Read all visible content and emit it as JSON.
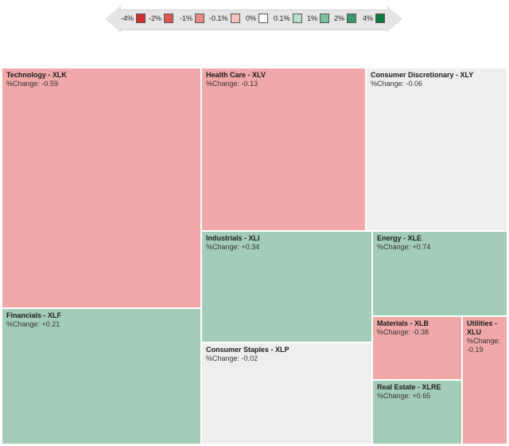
{
  "legend": [
    {
      "label": "-4%",
      "color": "#d0302c"
    },
    {
      "label": "-2%",
      "color": "#df5957"
    },
    {
      "label": "-1%",
      "color": "#e98a89"
    },
    {
      "label": "-0.1%",
      "color": "#f5c1c0"
    },
    {
      "label": "0%",
      "color": "#ffffff"
    },
    {
      "label": "0.1%",
      "color": "#b9ddc9"
    },
    {
      "label": "1%",
      "color": "#7fc0a0"
    },
    {
      "label": "2%",
      "color": "#3b9a6b"
    },
    {
      "label": "4%",
      "color": "#0d7a43"
    }
  ],
  "chart_data": {
    "type": "treemap",
    "change_label": "%Change:",
    "items": [
      {
        "name": "Technology - XLK",
        "change": "-0.59",
        "color": "#f0a8a8"
      },
      {
        "name": "Health Care - XLV",
        "change": "-0.13",
        "color": "#f0a8a8"
      },
      {
        "name": "Consumer Discretionary - XLY",
        "change": "-0.06",
        "color": "#eeeeee"
      },
      {
        "name": "Financials - XLF",
        "change": "+0.21",
        "color": "#a4cdb9"
      },
      {
        "name": "Industrials - XLI",
        "change": "+0.34",
        "color": "#a4cdb9"
      },
      {
        "name": "Energy - XLE",
        "change": "+0.74",
        "color": "#a4cdb9"
      },
      {
        "name": "Consumer Staples - XLP",
        "change": "-0.02",
        "color": "#eeeeee"
      },
      {
        "name": "Materials - XLB",
        "change": "-0.38",
        "color": "#f0a8a8"
      },
      {
        "name": "Utilities - XLU",
        "change": "-0.19",
        "color": "#f0a8a8"
      },
      {
        "name": "Real Estate - XLRE",
        "change": "+0.65",
        "color": "#a4cdb9"
      }
    ]
  }
}
